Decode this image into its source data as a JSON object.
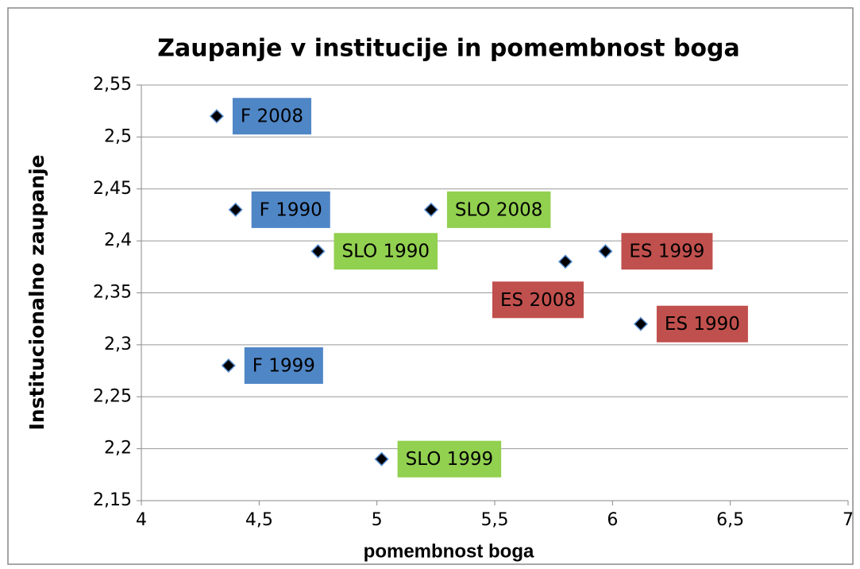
{
  "chart_data": {
    "type": "scatter",
    "title": "Zaupanje v institucije in pomembnost boga",
    "x_label": "pomembnost boga",
    "y_label": "Institucionalno zaupanje",
    "points": [
      {
        "label": "F 2008",
        "x": 4.32,
        "y": 2.52,
        "color": "#4f86c6"
      },
      {
        "label": "F 1990",
        "x": 4.4,
        "y": 2.43,
        "color": "#4f86c6"
      },
      {
        "label": "SLO 2008",
        "x": 5.23,
        "y": 2.43,
        "color": "#92d050"
      },
      {
        "label": "SLO 1990",
        "x": 4.75,
        "y": 2.39,
        "color": "#92d050"
      },
      {
        "label": "ES 1999",
        "x": 5.97,
        "y": 2.39,
        "color": "#c0504d"
      },
      {
        "label": "ES 2008",
        "x": 5.8,
        "y": 2.38,
        "color": "#c0504d"
      },
      {
        "label": "ES 1990",
        "x": 6.12,
        "y": 2.32,
        "color": "#c0504d"
      },
      {
        "label": "F 1999",
        "x": 4.37,
        "y": 2.28,
        "color": "#4f86c6"
      },
      {
        "label": "SLO 1999",
        "x": 5.02,
        "y": 2.19,
        "color": "#92d050"
      }
    ],
    "xlim": [
      4,
      7
    ],
    "xticks": [
      4,
      {
        "value": 4.5,
        "label": "4,5"
      },
      5,
      {
        "value": 5.5,
        "label": "5,5"
      },
      6,
      {
        "value": 6.5,
        "label": "6,5"
      },
      7
    ],
    "ylim": [
      2.15,
      2.55
    ],
    "yticks": [
      {
        "value": 2.15,
        "label": "2,15"
      },
      {
        "value": 2.2,
        "label": "2,2"
      },
      {
        "value": 2.25,
        "label": "2,25"
      },
      {
        "value": 2.3,
        "label": "2,3"
      },
      {
        "value": 2.35,
        "label": "2,35"
      },
      {
        "value": 2.4,
        "label": "2,4"
      },
      {
        "value": 2.45,
        "label": "2,45"
      },
      {
        "value": 2.5,
        "label": "2,5"
      },
      {
        "value": 2.55,
        "label": "2,55"
      }
    ],
    "grid": true
  }
}
